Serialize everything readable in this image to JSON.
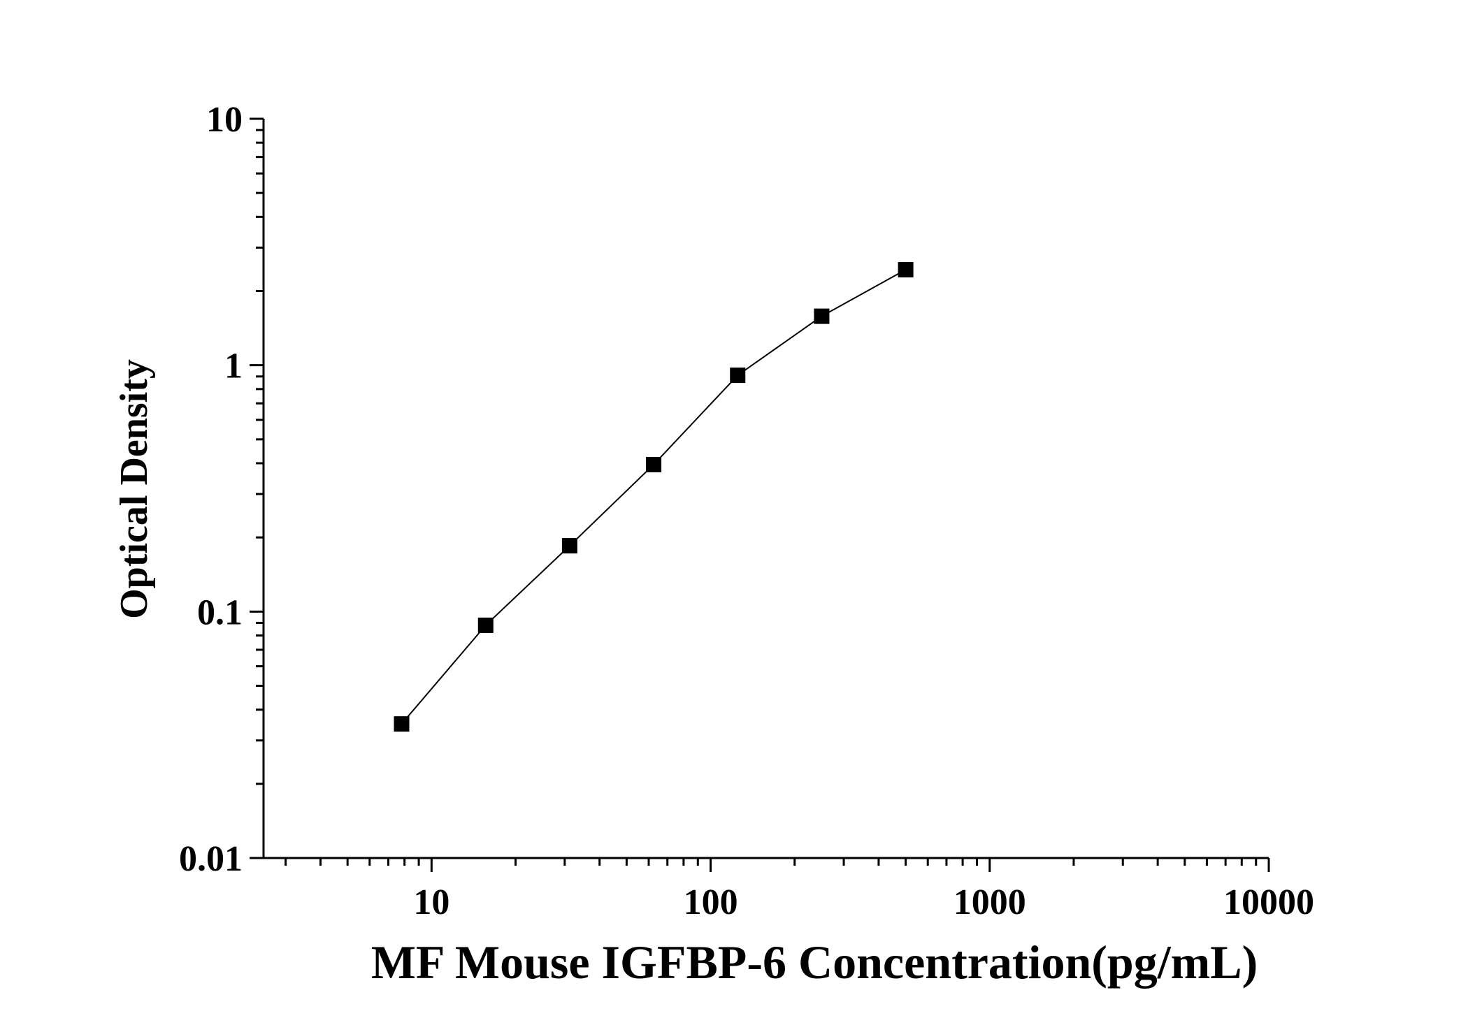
{
  "chart_data": {
    "type": "line",
    "xlabel": "MF Mouse IGFBP-6 Concentration(pg/mL)",
    "ylabel": "Optical Density",
    "x_scale": "log",
    "y_scale": "log",
    "xlim": [
      2.5,
      10000
    ],
    "ylim": [
      0.01,
      10
    ],
    "x_ticks": [
      10,
      100,
      1000,
      10000
    ],
    "x_tick_labels": [
      "10",
      "100",
      "1000",
      "10000"
    ],
    "y_ticks": [
      0.01,
      0.1,
      1,
      10
    ],
    "y_tick_labels": [
      "0.01",
      "0.1",
      "1",
      "10"
    ],
    "grid": false,
    "marker": "square",
    "series": [
      {
        "x": [
          7.81,
          15.63,
          31.25,
          62.5,
          125,
          250,
          500
        ],
        "y": [
          0.035,
          0.088,
          0.185,
          0.395,
          0.91,
          1.58,
          2.44
        ]
      }
    ],
    "colors": {
      "line": "#000000",
      "marker": "#000000",
      "axis": "#000000"
    }
  }
}
